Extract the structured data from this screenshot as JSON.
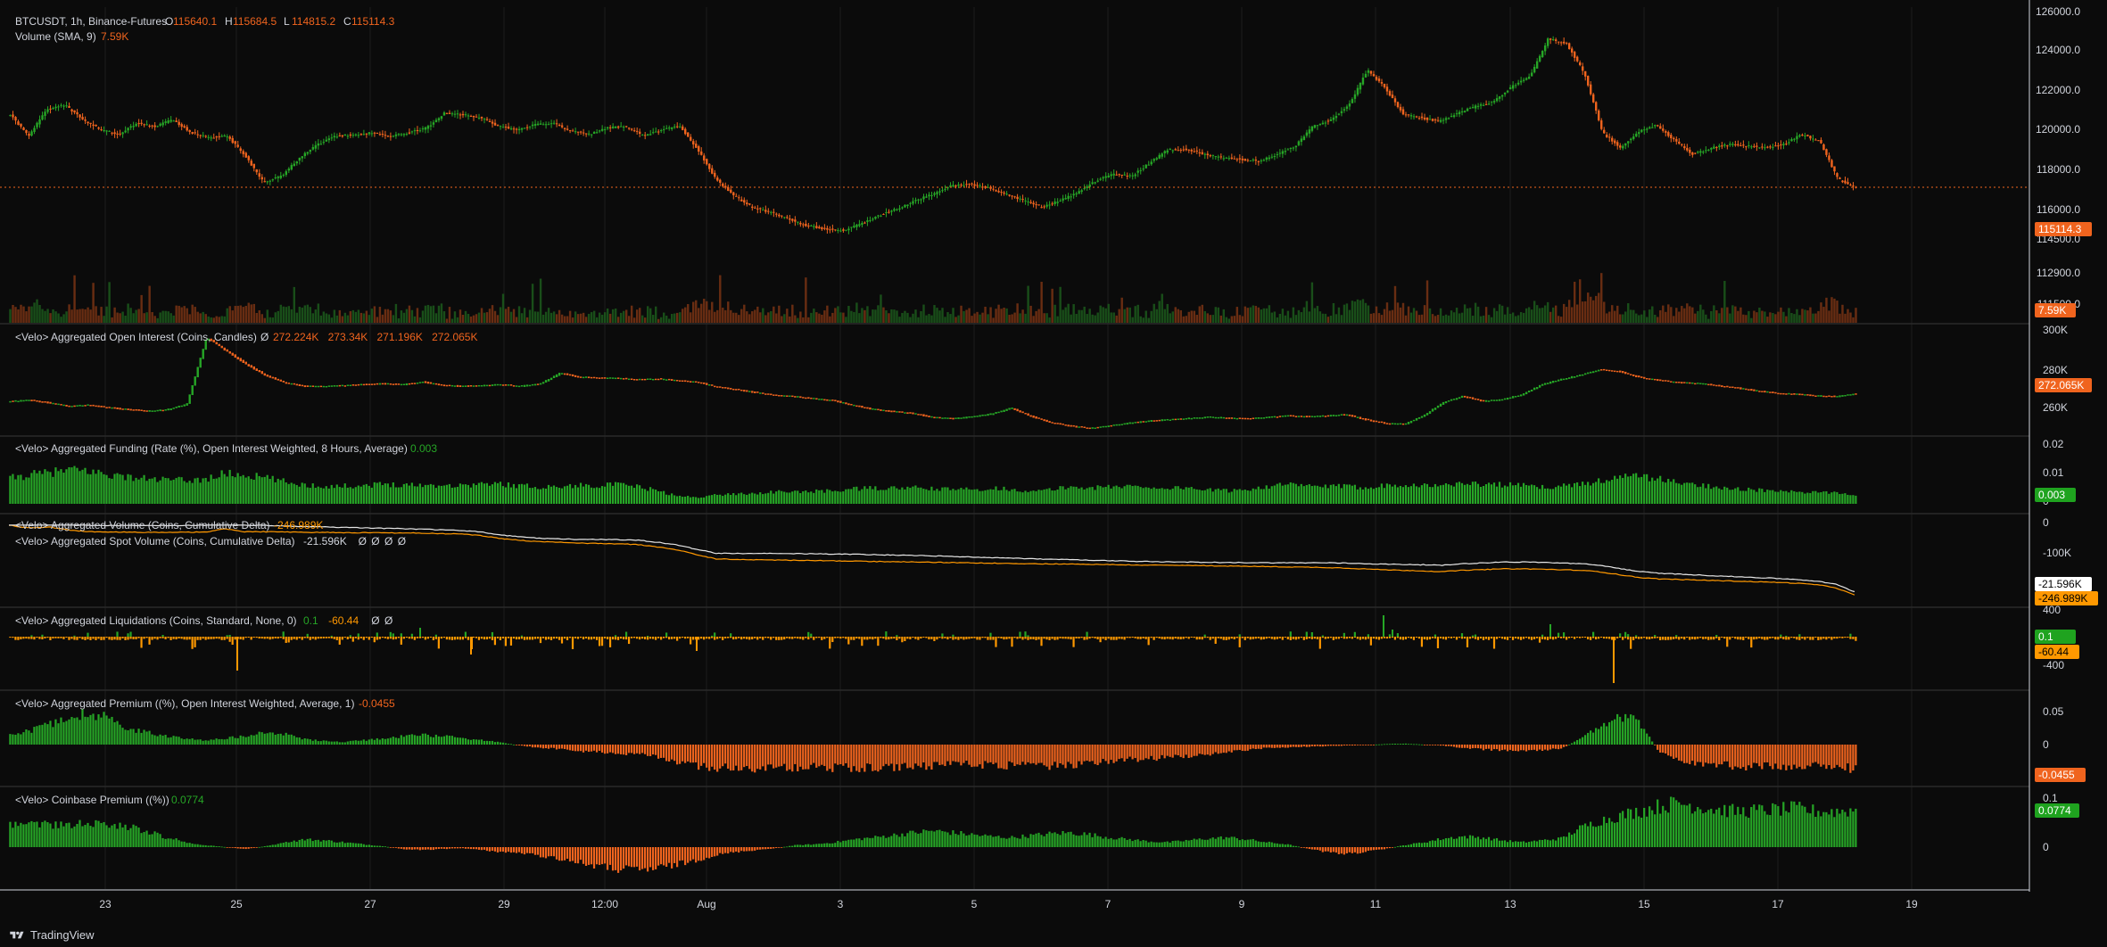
{
  "colors": {
    "bg": "#0b0b0b",
    "grid": "#1e1e1e",
    "up": "#26a626",
    "down": "#f0641e",
    "orange": "#ff9800",
    "white": "#e6e6e6",
    "text": "#d1d4dc",
    "price_badge": "#f0641e",
    "green_badge": "#1fa31f"
  },
  "header": {
    "symbol": "BTCUSDT, 1h, Binance-Futures",
    "o_label": "O",
    "o": "115640.1",
    "h_label": "H",
    "h": "115684.5",
    "l_label": "L",
    "l": "114815.2",
    "c_label": "C",
    "c": "115114.3",
    "volume_title": "Volume (SMA, 9)",
    "volume_value": "7.59K"
  },
  "footer": {
    "brand": "TradingView"
  },
  "x_axis": {
    "labels": [
      "23",
      "25",
      "27",
      "29",
      "12:00",
      "Aug",
      "3",
      "5",
      "7",
      "9",
      "11",
      "13",
      "15",
      "17",
      "19"
    ]
  },
  "chart_data": [
    {
      "type": "candlestick",
      "name": "BTCUSDT, 1h, Binance-Futures",
      "y_ticks": [
        "126000.0",
        "124000.0",
        "122000.0",
        "120000.0",
        "118000.0",
        "116000.0",
        "114500.0",
        "112900.0",
        "111500.0"
      ],
      "ylim": [
        110800,
        126000
      ],
      "last_price": "115114.3",
      "price_path": [
        119500,
        118200,
        119800,
        120100,
        119200,
        118600,
        118300,
        119000,
        118800,
        119200,
        118400,
        118100,
        118200,
        117000,
        115400,
        115800,
        116900,
        117700,
        118200,
        118300,
        118400,
        118200,
        118400,
        118700,
        119600,
        119500,
        119300,
        118800,
        118600,
        118900,
        119000,
        118500,
        118300,
        118700,
        118800,
        118200,
        118600,
        118800,
        117400,
        115600,
        114600,
        113900,
        113600,
        113200,
        112800,
        112600,
        112500,
        112900,
        113400,
        113800,
        114300,
        114700,
        115200,
        115300,
        115100,
        114700,
        114300,
        113900,
        114300,
        114800,
        115500,
        115900,
        115800,
        116600,
        117400,
        117400,
        117100,
        116900,
        116800,
        116700,
        117100,
        117600,
        118800,
        119200,
        120100,
        122200,
        121100,
        119500,
        119300,
        119100,
        119600,
        120000,
        120300,
        121200,
        121800,
        124100,
        123800,
        122000,
        118400,
        117500,
        118500,
        118900,
        117900,
        117100,
        117500,
        117700,
        117600,
        117500,
        117700,
        118300,
        117900,
        115600,
        115114
      ],
      "volume_label": "7.59K"
    },
    {
      "type": "candlestick",
      "name": "<Velo> Aggregated Open Interest (Coins, Candles)",
      "legend_values": [
        "272.224K",
        "273.34K",
        "271.196K",
        "272.065K"
      ],
      "y_ticks": [
        "300K",
        "280K",
        "260K"
      ],
      "ylim": [
        256000,
        302000
      ],
      "last_value": "272.065K",
      "path": [
        268500,
        269000,
        267800,
        266200,
        266800,
        265500,
        264700,
        263900,
        264600,
        267200,
        298500,
        292200,
        286000,
        280700,
        277200,
        275600,
        275400,
        275900,
        276400,
        276800,
        276300,
        277600,
        276000,
        275600,
        275800,
        276400,
        275600,
        276700,
        281700,
        279900,
        279500,
        279300,
        278700,
        279000,
        278200,
        277500,
        275200,
        274000,
        272600,
        271300,
        270700,
        269700,
        268700,
        266500,
        264700,
        263700,
        262800,
        261000,
        260400,
        261200,
        262600,
        265300,
        261400,
        258600,
        256900,
        255900,
        257000,
        258300,
        259300,
        259900,
        260500,
        261100,
        260700,
        260300,
        260900,
        261700,
        261400,
        261600,
        262300,
        260000,
        258200,
        257800,
        261900,
        268100,
        270900,
        268600,
        269300,
        271700,
        276300,
        278800,
        280900,
        283500,
        282400,
        279700,
        278300,
        277300,
        276900,
        275800,
        274700,
        273400,
        272300,
        271800,
        271100,
        270800,
        272065
      ]
    },
    {
      "type": "bar",
      "name": "<Velo> Aggregated Funding (Rate (%), Open Interest Weighted, 8 Hours, Average)",
      "legend_value": "0.003",
      "y_ticks": [
        "0.02",
        "0.01",
        "0"
      ],
      "ylim": [
        -0.0012,
        0.0215
      ],
      "last_value": "0.003",
      "path": [
        0.0092,
        0.0104,
        0.0112,
        0.0122,
        0.0118,
        0.0106,
        0.0096,
        0.009,
        0.0086,
        0.0084,
        0.0089,
        0.011,
        0.0102,
        0.0094,
        0.0079,
        0.0068,
        0.0063,
        0.0064,
        0.0066,
        0.0071,
        0.0069,
        0.0068,
        0.0067,
        0.0066,
        0.0072,
        0.0071,
        0.0065,
        0.0061,
        0.0062,
        0.0066,
        0.0067,
        0.0069,
        0.0061,
        0.0047,
        0.0027,
        0.0024,
        0.0032,
        0.0036,
        0.0038,
        0.0043,
        0.0043,
        0.0045,
        0.0047,
        0.0054,
        0.0056,
        0.0056,
        0.0058,
        0.0054,
        0.0052,
        0.0052,
        0.0056,
        0.0053,
        0.0043,
        0.0051,
        0.0062,
        0.0057,
        0.0061,
        0.0064,
        0.006,
        0.0056,
        0.0059,
        0.005,
        0.0047,
        0.0052,
        0.0063,
        0.0069,
        0.0064,
        0.0063,
        0.0062,
        0.006,
        0.0066,
        0.0071,
        0.0065,
        0.0068,
        0.0073,
        0.0071,
        0.0069,
        0.0066,
        0.006,
        0.0063,
        0.0072,
        0.0083,
        0.0094,
        0.0101,
        0.0089,
        0.0075,
        0.0067,
        0.0061,
        0.0054,
        0.0049,
        0.0046,
        0.0042,
        0.004,
        0.0041,
        0.003
      ]
    },
    {
      "type": "line",
      "name": "<Velo> Aggregated Volume (Coins, Cumulative Delta)",
      "legend_value": "-246.989K",
      "second_name": "<Velo> Aggregated Spot Volume (Coins, Cumulative Delta)",
      "second_legend": [
        "-21.596K",
        "Ø",
        "Ø",
        "Ø",
        "Ø"
      ],
      "y_ticks": [
        "0",
        "-100K"
      ],
      "ylim": [
        -255000,
        4000
      ],
      "series": [
        {
          "name": "<Velo> Aggregated Volume (Coins, Cumulative Delta)",
          "last": "-246.989K",
          "values": [
            -2000,
            -12000,
            -8000,
            -18000,
            -25000,
            -26000,
            -26500,
            -27000,
            -27500,
            -27000,
            -26000,
            -15000,
            -25000,
            -25000,
            -26000,
            -27000,
            -27500,
            -28000,
            -28500,
            -29000,
            -29500,
            -30000,
            -31500,
            -33000,
            -38000,
            -48000,
            -55000,
            -60000,
            -62000,
            -65000,
            -66000,
            -67000,
            -70000,
            -78000,
            -88000,
            -105000,
            -120000,
            -122000,
            -123000,
            -124000,
            -125000,
            -126000,
            -127000,
            -128000,
            -129000,
            -130000,
            -131000,
            -132000,
            -133000,
            -134000,
            -135000,
            -136000,
            -137000,
            -137500,
            -138000,
            -139000,
            -140000,
            -141000,
            -142000,
            -142500,
            -143000,
            -144000,
            -145000,
            -146000,
            -147000,
            -148000,
            -149000,
            -150000,
            -152000,
            -155000,
            -158000,
            -160000,
            -162000,
            -165000,
            -160000,
            -158000,
            -155000,
            -155000,
            -156000,
            -158000,
            -160000,
            -165000,
            -175000,
            -185000,
            -190000,
            -192000,
            -194000,
            -196000,
            -198000,
            -200000,
            -202000,
            -205000,
            -210000,
            -220000,
            -246989
          ]
        },
        {
          "name": "<Velo> Aggregated Spot Volume (Coins, Cumulative Delta)",
          "last": "-21.596K",
          "values_offset_note": ""
        }
      ]
    },
    {
      "type": "bar",
      "name": "<Velo> Aggregated Liquidations (Coins, Standard, None, 0)",
      "legend_values": [
        "0.1",
        "-60.44",
        "Ø",
        "Ø"
      ],
      "y_ticks": [
        "400",
        "-400"
      ],
      "ylim": [
        -1650,
        650
      ],
      "last_long": "0.1",
      "last_short": "-60.44"
    },
    {
      "type": "bar",
      "name": "<Velo> Aggregated Premium ((%), Open Interest Weighted, Average, 1)",
      "legend_value": "-0.0455",
      "y_ticks": [
        "0.05",
        "0"
      ],
      "ylim": [
        -0.085,
        0.1
      ],
      "last_value": "-0.0455",
      "path": [
        0.017,
        0.026,
        0.038,
        0.052,
        0.06,
        0.049,
        0.031,
        0.022,
        0.016,
        0.011,
        0.008,
        0.012,
        0.016,
        0.025,
        0.02,
        0.01,
        0.007,
        0.005,
        0.008,
        0.012,
        0.015,
        0.018,
        0.016,
        0.012,
        0.008,
        0.004,
        -0.002,
        -0.006,
        -0.008,
        -0.012,
        -0.014,
        -0.016,
        -0.018,
        -0.024,
        -0.032,
        -0.039,
        -0.043,
        -0.043,
        -0.044,
        -0.043,
        -0.042,
        -0.042,
        -0.043,
        -0.044,
        -0.042,
        -0.042,
        -0.041,
        -0.04,
        -0.038,
        -0.037,
        -0.038,
        -0.039,
        -0.04,
        -0.04,
        -0.038,
        -0.035,
        -0.031,
        -0.028,
        -0.026,
        -0.024,
        -0.021,
        -0.018,
        -0.014,
        -0.01,
        -0.006,
        -0.005,
        -0.004,
        -0.003,
        -0.002,
        -0.001,
        0.001,
        0.002,
        0.0,
        -0.002,
        -0.006,
        -0.009,
        -0.011,
        -0.012,
        -0.01,
        -0.008,
        0.012,
        0.035,
        0.055,
        0.041,
        -0.014,
        -0.028,
        -0.034,
        -0.038,
        -0.04,
        -0.041,
        -0.041,
        -0.04,
        -0.04,
        -0.041,
        -0.0455
      ]
    },
    {
      "type": "bar",
      "name": "<Velo> Coinbase Premium ((%))",
      "legend_value": "0.0774",
      "y_ticks": [
        "0.1",
        "0"
      ],
      "ylim": [
        -0.085,
        0.115
      ],
      "last_value": "0.0774",
      "path": [
        0.045,
        0.05,
        0.047,
        0.043,
        0.052,
        0.048,
        0.042,
        0.033,
        0.02,
        0.01,
        0.004,
        0.0,
        -0.004,
        0.002,
        0.01,
        0.016,
        0.014,
        0.01,
        0.006,
        0.002,
        -0.004,
        -0.006,
        -0.004,
        -0.002,
        -0.006,
        -0.01,
        -0.012,
        -0.018,
        -0.024,
        -0.032,
        -0.04,
        -0.046,
        -0.048,
        -0.044,
        -0.036,
        -0.026,
        -0.016,
        -0.01,
        -0.006,
        -0.002,
        0.004,
        0.006,
        0.01,
        0.016,
        0.02,
        0.025,
        0.03,
        0.034,
        0.03,
        0.026,
        0.022,
        0.02,
        0.024,
        0.028,
        0.03,
        0.026,
        0.02,
        0.016,
        0.012,
        0.01,
        0.014,
        0.018,
        0.02,
        0.016,
        0.01,
        0.006,
        -0.002,
        -0.01,
        -0.014,
        -0.01,
        -0.004,
        0.004,
        0.01,
        0.018,
        0.022,
        0.02,
        0.014,
        0.01,
        0.014,
        0.018,
        0.04,
        0.055,
        0.065,
        0.075,
        0.085,
        0.092,
        0.084,
        0.078,
        0.074,
        0.076,
        0.078,
        0.08,
        0.074,
        0.074,
        0.0774
      ]
    }
  ]
}
